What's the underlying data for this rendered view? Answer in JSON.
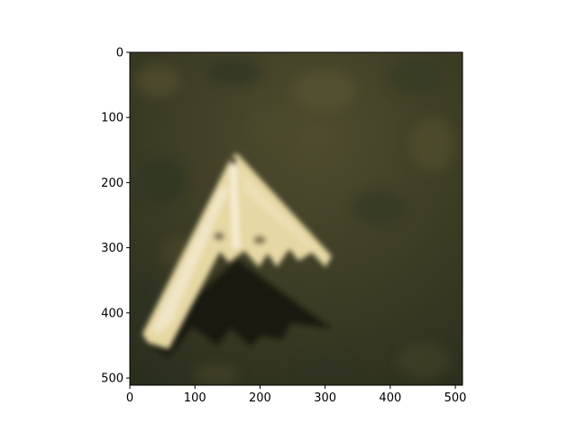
{
  "figure": {
    "image_description": "Aerial view of a cream-colored flying-wing (B-2 style) aircraft model on a dark green grass background",
    "colors": {
      "grass_dark": "#2e3320",
      "grass_mid": "#4a4a2c",
      "aircraft_light": "#efe4b8",
      "aircraft_mid": "#d9c891",
      "shadow": "#141410"
    }
  },
  "chart_data": {
    "type": "image",
    "xlim": [
      0,
      511
    ],
    "ylim": [
      511,
      0
    ],
    "x_ticks": [
      0,
      100,
      200,
      300,
      400,
      500
    ],
    "y_ticks": [
      0,
      100,
      200,
      300,
      400,
      500
    ],
    "grid": false
  }
}
